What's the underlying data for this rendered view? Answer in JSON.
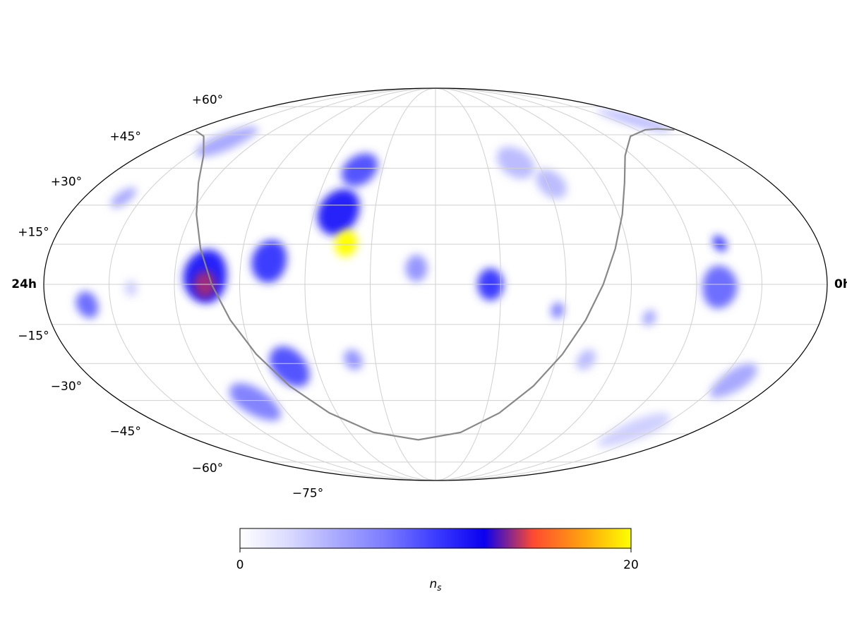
{
  "chart_data": {
    "type": "skymap",
    "projection": "mollweide",
    "xlim": [
      360,
      0
    ],
    "ylim": [
      -90,
      90
    ],
    "xticks": [
      {
        "value": 360,
        "label": "24h"
      },
      {
        "value": 0,
        "label": "0h"
      }
    ],
    "yticks": [
      {
        "value": 60,
        "label": "+60°"
      },
      {
        "value": 45,
        "label": "+45°"
      },
      {
        "value": 30,
        "label": "+30°"
      },
      {
        "value": 15,
        "label": "+15°"
      },
      {
        "value": -15,
        "label": "−15°"
      },
      {
        "value": -30,
        "label": "−30°"
      },
      {
        "value": -45,
        "label": "−45°"
      },
      {
        "value": -60,
        "label": "−60°"
      },
      {
        "value": -75,
        "label": "−75°"
      }
    ],
    "grid": true,
    "colormap": [
      "#ffffff",
      "#dadaff",
      "#a8a8ff",
      "#7a7aff",
      "#3c3cff",
      "#0a00f0",
      "#ff4a30",
      "#ffa010",
      "#ffff00"
    ],
    "clim": [
      0,
      20
    ],
    "cticks": [
      0,
      20
    ],
    "colorbar_label": {
      "base": "n",
      "sub": "s"
    },
    "sources": {
      "ra": [
        320,
        42.4,
        133,
        118,
        105,
        12,
        321,
        340,
        22.3,
        80.3,
        188.8,
        221,
        284,
        123.4,
        49.3,
        341,
        254,
        223,
        257,
        154.7,
        46.4,
        228,
        286,
        286,
        222
      ],
      "dec": [
        -1.5,
        -58.4,
        47.5,
        38.6,
        -28.5,
        67.4,
        57,
        33,
        -36.9,
        -12.5,
        6,
        -28.5,
        -45.8,
        -9.7,
        -1,
        -7.6,
        -31.3,
        44.5,
        8.6,
        0,
        15.3,
        27.4,
        3,
        0,
        15.3
      ],
      "ns": [
        3,
        3,
        4,
        4,
        4,
        4,
        5,
        5,
        5,
        5,
        6,
        6,
        7,
        7,
        8,
        8,
        9,
        9,
        10,
        10,
        10,
        11,
        11,
        14,
        20
      ],
      "radius": [
        3,
        8,
        7,
        6,
        4,
        6,
        7,
        4,
        7,
        3,
        5,
        4,
        8,
        3,
        8,
        5,
        8,
        7,
        8,
        6,
        3,
        9,
        10,
        5,
        5
      ]
    },
    "galactic_plane": {
      "color": "#888888",
      "ra": [
        356.8,
        342.4,
        321.2,
        307.4,
        297.6,
        289.8,
        282.9,
        275.9,
        268.1,
        258.4,
        244.6,
        223.4,
        192.9,
        162.4,
        141.2,
        127.4,
        117.6,
        109.8,
        102.9,
        96.0,
        88.1,
        78.4,
        64.6,
        43.4,
        23.8,
        12.9,
        1.96
      ],
      "dec": [
        61.9,
        59.3,
        50.4,
        39.0,
        26.4,
        13.3,
        0,
        -13.3,
        -26.4,
        -39.0,
        -50.4,
        -59.3,
        -62.9,
        -59.3,
        -50.4,
        -39.0,
        -26.4,
        -13.3,
        0,
        13.3,
        26.4,
        39.0,
        50.4,
        59.3,
        62.4,
        62.9,
        62.4
      ]
    }
  }
}
